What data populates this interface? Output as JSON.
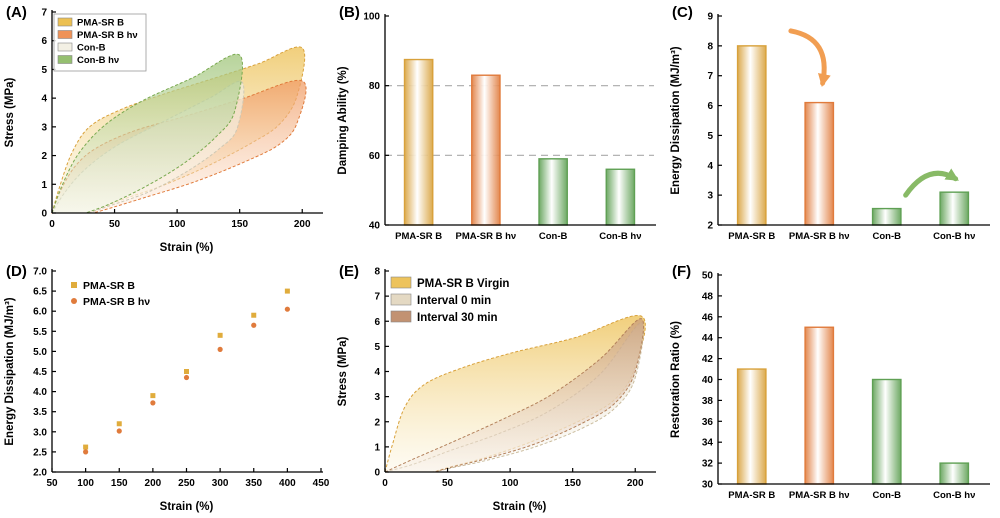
{
  "figure": {
    "background": "#ffffff",
    "panels": [
      {
        "label": "(A)"
      },
      {
        "label": "(B)"
      },
      {
        "label": "(C)"
      },
      {
        "label": "(D)"
      },
      {
        "label": "(E)"
      },
      {
        "label": "(F)"
      }
    ]
  },
  "chart_data": [
    {
      "id": "A",
      "type": "loops",
      "xlabel": "Strain (%)",
      "ylabel": "Stress (MPa)",
      "xlim": [
        0,
        215
      ],
      "ylim": [
        0,
        7
      ],
      "xticks": [
        0,
        50,
        100,
        150,
        200
      ],
      "yticks": [
        0,
        1,
        2,
        3,
        4,
        5,
        6,
        7
      ],
      "legend": {
        "box": true,
        "big": false,
        "items": [
          {
            "label": "PMA-SR B",
            "color": "#ECC052"
          },
          {
            "label": "PMA-SR B hν",
            "color": "#EF9257"
          },
          {
            "label": "Con-B",
            "color": "#F3F0E4"
          },
          {
            "label": "Con-B hν",
            "color": "#95BF70"
          }
        ]
      },
      "series": [
        {
          "name": "PMA-SR B",
          "stroke": "#D8A13B",
          "fillTop": "#ECBE4E",
          "fillBottom": "#FCF6E2",
          "load": [
            [
              0,
              0
            ],
            [
              6,
              0.9
            ],
            [
              16,
              2.1
            ],
            [
              30,
              3.0
            ],
            [
              55,
              3.6
            ],
            [
              90,
              4.15
            ],
            [
              130,
              4.7
            ],
            [
              165,
              5.2
            ],
            [
              200,
              5.75
            ]
          ],
          "unload": [
            [
              196,
              4.1
            ],
            [
              182,
              3.1
            ],
            [
              160,
              2.45
            ],
            [
              125,
              1.65
            ],
            [
              88,
              0.95
            ],
            [
              55,
              0.45
            ],
            [
              36,
              0.1
            ],
            [
              28,
              0
            ]
          ]
        },
        {
          "name": "PMA-SR B hν",
          "stroke": "#E07B3C",
          "fillTop": "#F09A62",
          "fillBottom": "#FDEEDF",
          "load": [
            [
              0,
              0
            ],
            [
              6,
              0.7
            ],
            [
              18,
              1.6
            ],
            [
              35,
              2.25
            ],
            [
              65,
              2.85
            ],
            [
              105,
              3.35
            ],
            [
              150,
              3.95
            ],
            [
              200,
              4.6
            ]
          ],
          "unload": [
            [
              196,
              3.15
            ],
            [
              182,
              2.4
            ],
            [
              155,
              1.8
            ],
            [
              115,
              1.1
            ],
            [
              75,
              0.55
            ],
            [
              45,
              0.15
            ],
            [
              33,
              0
            ]
          ]
        },
        {
          "name": "Con-B",
          "stroke": "#CEC8B4",
          "fillTop": "#EFEBDC",
          "fillBottom": "#FCFBF6",
          "load": [
            [
              0,
              0
            ],
            [
              10,
              0.7
            ],
            [
              26,
              1.5
            ],
            [
              52,
              2.35
            ],
            [
              92,
              3.25
            ],
            [
              126,
              4.0
            ],
            [
              152,
              4.55
            ]
          ],
          "unload": [
            [
              148,
              2.95
            ],
            [
              134,
              2.25
            ],
            [
              108,
              1.45
            ],
            [
              78,
              0.75
            ],
            [
              48,
              0.28
            ],
            [
              29,
              0
            ]
          ]
        },
        {
          "name": "Con-B hν",
          "stroke": "#79A94F",
          "fillTop": "#9EC477",
          "fillBottom": "#F0F6E7",
          "load": [
            [
              0,
              0
            ],
            [
              8,
              0.95
            ],
            [
              21,
              2.05
            ],
            [
              42,
              3.05
            ],
            [
              72,
              3.9
            ],
            [
              112,
              4.7
            ],
            [
              150,
              5.5
            ]
          ],
          "unload": [
            [
              146,
              3.55
            ],
            [
              131,
              2.65
            ],
            [
              106,
              1.75
            ],
            [
              76,
              0.95
            ],
            [
              47,
              0.33
            ],
            [
              27,
              0
            ]
          ]
        }
      ]
    },
    {
      "id": "B",
      "type": "bar",
      "ylabel": "Damping Ability (%)",
      "categories": [
        "PMA-SR B",
        "PMA-SR B hν",
        "Con-B",
        "Con-B hν"
      ],
      "values": [
        87.5,
        83,
        59,
        56
      ],
      "barColors": [
        "#D8A13B",
        "#E07B3C",
        "#5FA054",
        "#5FA054"
      ],
      "ylim": [
        40,
        100
      ],
      "yticks": [
        40,
        60,
        80,
        100
      ],
      "refLines": [
        60,
        80
      ]
    },
    {
      "id": "C",
      "type": "bar",
      "ylabel": "Energy Dissipation (MJ/m³)",
      "categories": [
        "PMA-SR B",
        "PMA-SR B hν",
        "Con-B",
        "Con-B hν"
      ],
      "values": [
        8.0,
        6.1,
        2.55,
        3.1
      ],
      "barColors": [
        "#D8A13B",
        "#E07B3C",
        "#5FA054",
        "#5FA054"
      ],
      "ylim": [
        2,
        9
      ],
      "yticks": [
        2,
        3,
        4,
        5,
        6,
        7,
        8,
        9
      ],
      "arrows": [
        {
          "from": [
            0.58,
            8.5
          ],
          "ctrl": [
            1.18,
            8.25
          ],
          "to": [
            1.05,
            6.75
          ],
          "color": "#F09440"
        },
        {
          "from": [
            2.28,
            3.0
          ],
          "ctrl": [
            2.62,
            4.1
          ],
          "to": [
            3.02,
            3.55
          ],
          "color": "#7CB356"
        }
      ]
    },
    {
      "id": "D",
      "type": "scatter",
      "xlabel": "Strain (%)",
      "ylabel": "Energy Dissipation (MJ/m³)",
      "xlim": [
        50,
        450
      ],
      "ylim": [
        2.0,
        7.0
      ],
      "xticks": [
        50,
        100,
        150,
        200,
        250,
        300,
        350,
        400,
        450
      ],
      "yticks": [
        2.0,
        2.5,
        3.0,
        3.5,
        4.0,
        4.5,
        5.0,
        5.5,
        6.0,
        6.5,
        7.0
      ],
      "ytickDecimals": 1,
      "legend": {
        "items": [
          {
            "label": "PMA-SR B",
            "color": "#E0AC3C",
            "marker": "square"
          },
          {
            "label": "PMA-SR B hν",
            "color": "#E07B3C",
            "marker": "circle"
          }
        ]
      },
      "series": [
        {
          "name": "PMA-SR B",
          "marker": "square",
          "color": "#E0AC3C",
          "x": [
            100,
            150,
            200,
            250,
            300,
            350,
            400
          ],
          "y": [
            2.62,
            3.2,
            3.9,
            4.5,
            5.4,
            5.9,
            6.5
          ]
        },
        {
          "name": "PMA-SR B hν",
          "marker": "circle",
          "color": "#E07B3C",
          "x": [
            100,
            150,
            200,
            250,
            300,
            350,
            400
          ],
          "y": [
            2.5,
            3.02,
            3.72,
            4.35,
            5.05,
            5.65,
            6.05
          ]
        }
      ]
    },
    {
      "id": "E",
      "type": "loops",
      "xlabel": "Strain (%)",
      "ylabel": "Stress (MPa)",
      "xlim": [
        0,
        215
      ],
      "ylim": [
        0,
        8
      ],
      "xticks": [
        0,
        50,
        100,
        150,
        200
      ],
      "yticks": [
        0,
        1,
        2,
        3,
        4,
        5,
        6,
        7,
        8
      ],
      "legend": {
        "box": false,
        "big": true,
        "items": [
          {
            "label": "PMA-SR B Virgin",
            "color": "#EDC35C"
          },
          {
            "label": "Interval 0 min",
            "color": "#E4D9C3"
          },
          {
            "label": "Interval 30 min",
            "color": "#C29272"
          }
        ]
      },
      "series": [
        {
          "name": "PMA-SR B Virgin",
          "stroke": "#D8A13B",
          "fillTop": "#ECBE4E",
          "fillBottom": "#FCF6E2",
          "load": [
            [
              0,
              0
            ],
            [
              6,
              1.1
            ],
            [
              16,
              2.6
            ],
            [
              32,
              3.5
            ],
            [
              62,
              4.15
            ],
            [
              102,
              4.75
            ],
            [
              152,
              5.35
            ],
            [
              205,
              6.2
            ]
          ],
          "unload": [
            [
              200,
              4.2
            ],
            [
              186,
              3.0
            ],
            [
              162,
              2.2
            ],
            [
              122,
              1.3
            ],
            [
              82,
              0.6
            ],
            [
              52,
              0.2
            ],
            [
              38,
              0
            ]
          ]
        },
        {
          "name": "Interval 0 min",
          "stroke": "#CBBD9F",
          "fillTop": "#E0D5BD",
          "fillBottom": "#FBF9F3",
          "load": [
            [
              0,
              0
            ],
            [
              22,
              0.3
            ],
            [
              52,
              0.85
            ],
            [
              92,
              1.55
            ],
            [
              132,
              2.45
            ],
            [
              172,
              3.9
            ],
            [
              205,
              5.95
            ]
          ],
          "unload": [
            [
              200,
              3.75
            ],
            [
              184,
              2.55
            ],
            [
              158,
              1.75
            ],
            [
              120,
              1.0
            ],
            [
              80,
              0.45
            ],
            [
              52,
              0.15
            ],
            [
              40,
              0
            ]
          ]
        },
        {
          "name": "Interval 30 min",
          "stroke": "#B3805A",
          "fillTop": "#C79A77",
          "fillBottom": "#F9F1EA",
          "load": [
            [
              0,
              0
            ],
            [
              22,
              0.5
            ],
            [
              52,
              1.15
            ],
            [
              92,
              2.05
            ],
            [
              132,
              3.05
            ],
            [
              172,
              4.5
            ],
            [
              205,
              6.1
            ]
          ],
          "unload": [
            [
              200,
              4.0
            ],
            [
              184,
              2.75
            ],
            [
              158,
              1.95
            ],
            [
              120,
              1.12
            ],
            [
              80,
              0.52
            ],
            [
              52,
              0.18
            ],
            [
              40,
              0
            ]
          ]
        }
      ]
    },
    {
      "id": "F",
      "type": "bar",
      "ylabel": "Restoration Ratio (%)",
      "categories": [
        "PMA-SR B",
        "PMA-SR B hν",
        "Con-B",
        "Con-B hν"
      ],
      "values": [
        41,
        45,
        40,
        32
      ],
      "barColors": [
        "#D8A13B",
        "#E07B3C",
        "#5FA054",
        "#5FA054"
      ],
      "ylim": [
        30,
        50
      ],
      "yticks": [
        30,
        32,
        34,
        36,
        38,
        40,
        42,
        44,
        46,
        48,
        50
      ]
    }
  ]
}
